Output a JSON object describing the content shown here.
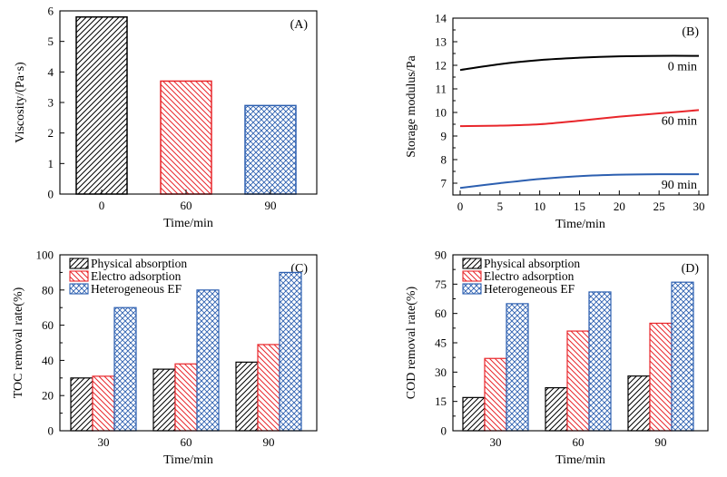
{
  "chart_data": [
    {
      "panel": "(A)",
      "type": "bar",
      "categories": [
        "0",
        "60",
        "90"
      ],
      "series": [
        {
          "name": "Viscosity",
          "values": [
            5.8,
            3.7,
            2.9
          ],
          "color": "#000000",
          "pattern": "hatch-right"
        }
      ],
      "bar_colors": [
        "#000000",
        "#e8262b",
        "#2c5fb0"
      ],
      "bar_patterns": [
        "hatch-right",
        "hatch-left",
        "cross"
      ],
      "xlabel": "Time/min",
      "ylabel": "Viscosity/(Pa·s)",
      "ylim": [
        0,
        6
      ],
      "yticks": [
        "0",
        "1",
        "2",
        "3",
        "4",
        "5",
        "6"
      ]
    },
    {
      "panel": "(B)",
      "type": "line",
      "xlabel": "Time/min",
      "ylabel": "Storage modulus/Pa",
      "xlim": [
        0,
        30
      ],
      "ylim": [
        6.5,
        14
      ],
      "xticks": [
        "0",
        "5",
        "10",
        "15",
        "20",
        "25",
        "30"
      ],
      "yticks": [
        "7",
        "8",
        "9",
        "10",
        "11",
        "12",
        "13",
        "14"
      ],
      "series": [
        {
          "name": "0 min",
          "color": "#000000",
          "x": [
            0,
            5,
            10,
            15,
            20,
            25,
            30
          ],
          "y": [
            11.8,
            12.05,
            12.22,
            12.32,
            12.38,
            12.4,
            12.4
          ]
        },
        {
          "name": "60 min",
          "color": "#e8262b",
          "x": [
            0,
            5,
            10,
            15,
            20,
            25,
            30
          ],
          "y": [
            9.42,
            9.44,
            9.5,
            9.65,
            9.82,
            9.96,
            10.1
          ]
        },
        {
          "name": "90 min",
          "color": "#2c5fb0",
          "x": [
            0,
            5,
            10,
            15,
            20,
            25,
            30
          ],
          "y": [
            6.8,
            7.0,
            7.18,
            7.3,
            7.36,
            7.38,
            7.38
          ]
        }
      ]
    },
    {
      "panel": "(C)",
      "type": "bar",
      "categories": [
        "30",
        "60",
        "90"
      ],
      "xlabel": "Time/min",
      "ylabel": "TOC removal rate(%)",
      "ylim": [
        0,
        100
      ],
      "yticks": [
        "0",
        "20",
        "40",
        "60",
        "80",
        "100"
      ],
      "legend_position": "top-left",
      "series": [
        {
          "name": "Physical absorption",
          "values": [
            30,
            35,
            39
          ],
          "color": "#000000",
          "pattern": "hatch-right"
        },
        {
          "name": "Electro adsorption",
          "values": [
            31,
            38,
            49
          ],
          "color": "#e8262b",
          "pattern": "hatch-left"
        },
        {
          "name": "Heterogeneous EF",
          "values": [
            70,
            80,
            90
          ],
          "color": "#2c5fb0",
          "pattern": "cross"
        }
      ]
    },
    {
      "panel": "(D)",
      "type": "bar",
      "categories": [
        "30",
        "60",
        "90"
      ],
      "xlabel": "Time/min",
      "ylabel": "COD removal rate(%)",
      "ylim": [
        0,
        90
      ],
      "yticks": [
        "0",
        "15",
        "30",
        "45",
        "60",
        "75",
        "90"
      ],
      "legend_position": "top-left",
      "series": [
        {
          "name": "Physical absorption",
          "values": [
            17,
            22,
            28
          ],
          "color": "#000000",
          "pattern": "hatch-right"
        },
        {
          "name": "Electro adsorption",
          "values": [
            37,
            51,
            55
          ],
          "color": "#e8262b",
          "pattern": "hatch-left"
        },
        {
          "name": "Heterogeneous EF",
          "values": [
            65,
            71,
            76
          ],
          "color": "#2c5fb0",
          "pattern": "cross"
        }
      ]
    }
  ]
}
